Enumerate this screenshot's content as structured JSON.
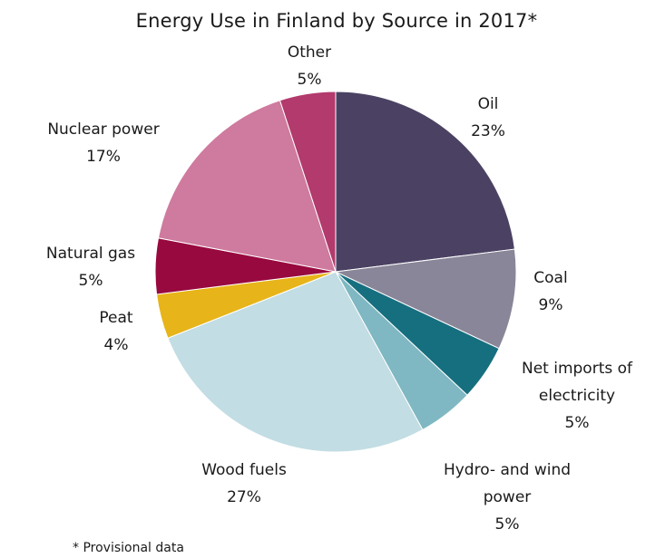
{
  "chart_data": {
    "type": "pie",
    "title": "Energy Use in Finland by Source in 2017*",
    "footnote": "* Provisional data",
    "start_angle_deg": 0,
    "direction": "clockwise",
    "slices": [
      {
        "name": "Oil",
        "value": 23,
        "label_lines": [
          "Oil",
          "23%"
        ],
        "color": "#4b4263"
      },
      {
        "name": "Coal",
        "value": 9,
        "label_lines": [
          "Coal",
          "9%"
        ],
        "color": "#8a8699"
      },
      {
        "name": "Net imports of electricity",
        "value": 5,
        "label_lines": [
          "Net imports of",
          "electricity",
          "5%"
        ],
        "color": "#166f7f"
      },
      {
        "name": "Hydro- and wind power",
        "value": 5,
        "label_lines": [
          "Hydro- and wind",
          "power",
          "5%"
        ],
        "color": "#7fb8c2"
      },
      {
        "name": "Wood fuels",
        "value": 27,
        "label_lines": [
          "Wood fuels",
          "27%"
        ],
        "color": "#c2dde3"
      },
      {
        "name": "Peat",
        "value": 4,
        "label_lines": [
          "Peat",
          "4%"
        ],
        "color": "#e7b419"
      },
      {
        "name": "Natural gas",
        "value": 5,
        "label_lines": [
          "Natural gas",
          "5%"
        ],
        "color": "#98093f"
      },
      {
        "name": "Nuclear power",
        "value": 17,
        "label_lines": [
          "Nuclear power",
          "17%"
        ],
        "color": "#cf7a9f"
      },
      {
        "name": "Other",
        "value": 5,
        "label_lines": [
          "Other",
          "5%"
        ],
        "color": "#b23a6c"
      }
    ]
  }
}
